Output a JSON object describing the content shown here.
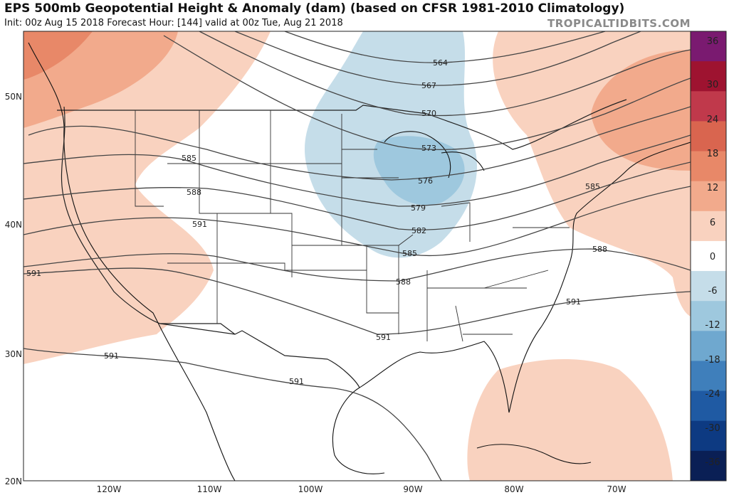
{
  "header": {
    "title": "EPS 500mb Geopotential Height & Anomaly (dam) (based on CFSR 1981-2010 Climatology)",
    "subtitle": "Init: 00z Aug 15 2018   Forecast Hour: [144]   valid at 00z Tue, Aug 21 2018",
    "brand": "TROPICALTIDBITS.COM"
  },
  "map": {
    "lat_labels": [
      "50N",
      "40N",
      "30N",
      "20N"
    ],
    "lon_labels": [
      "120W",
      "110W",
      "100W",
      "90W",
      "80W",
      "70W"
    ],
    "contour_labels": [
      "564",
      "567",
      "570",
      "573",
      "576",
      "579",
      "582",
      "585",
      "585",
      "585",
      "588",
      "588",
      "588",
      "591",
      "591",
      "591",
      "591",
      "591",
      "591"
    ]
  },
  "colorbar": {
    "ticks": [
      "36",
      "30",
      "24",
      "18",
      "12",
      "6",
      "0",
      "-6",
      "-12",
      "-18",
      "-24",
      "-30",
      "-36"
    ],
    "colors": [
      "#7a1a70",
      "#9e1330",
      "#c0394b",
      "#d9654f",
      "#e88868",
      "#f2aa8c",
      "#f9d2bf",
      "#ffffff",
      "#c5dde9",
      "#9ec8de",
      "#6fa8cf",
      "#3f7fbb",
      "#1f5aa3",
      "#0d3a82",
      "#0a1f55"
    ]
  }
}
